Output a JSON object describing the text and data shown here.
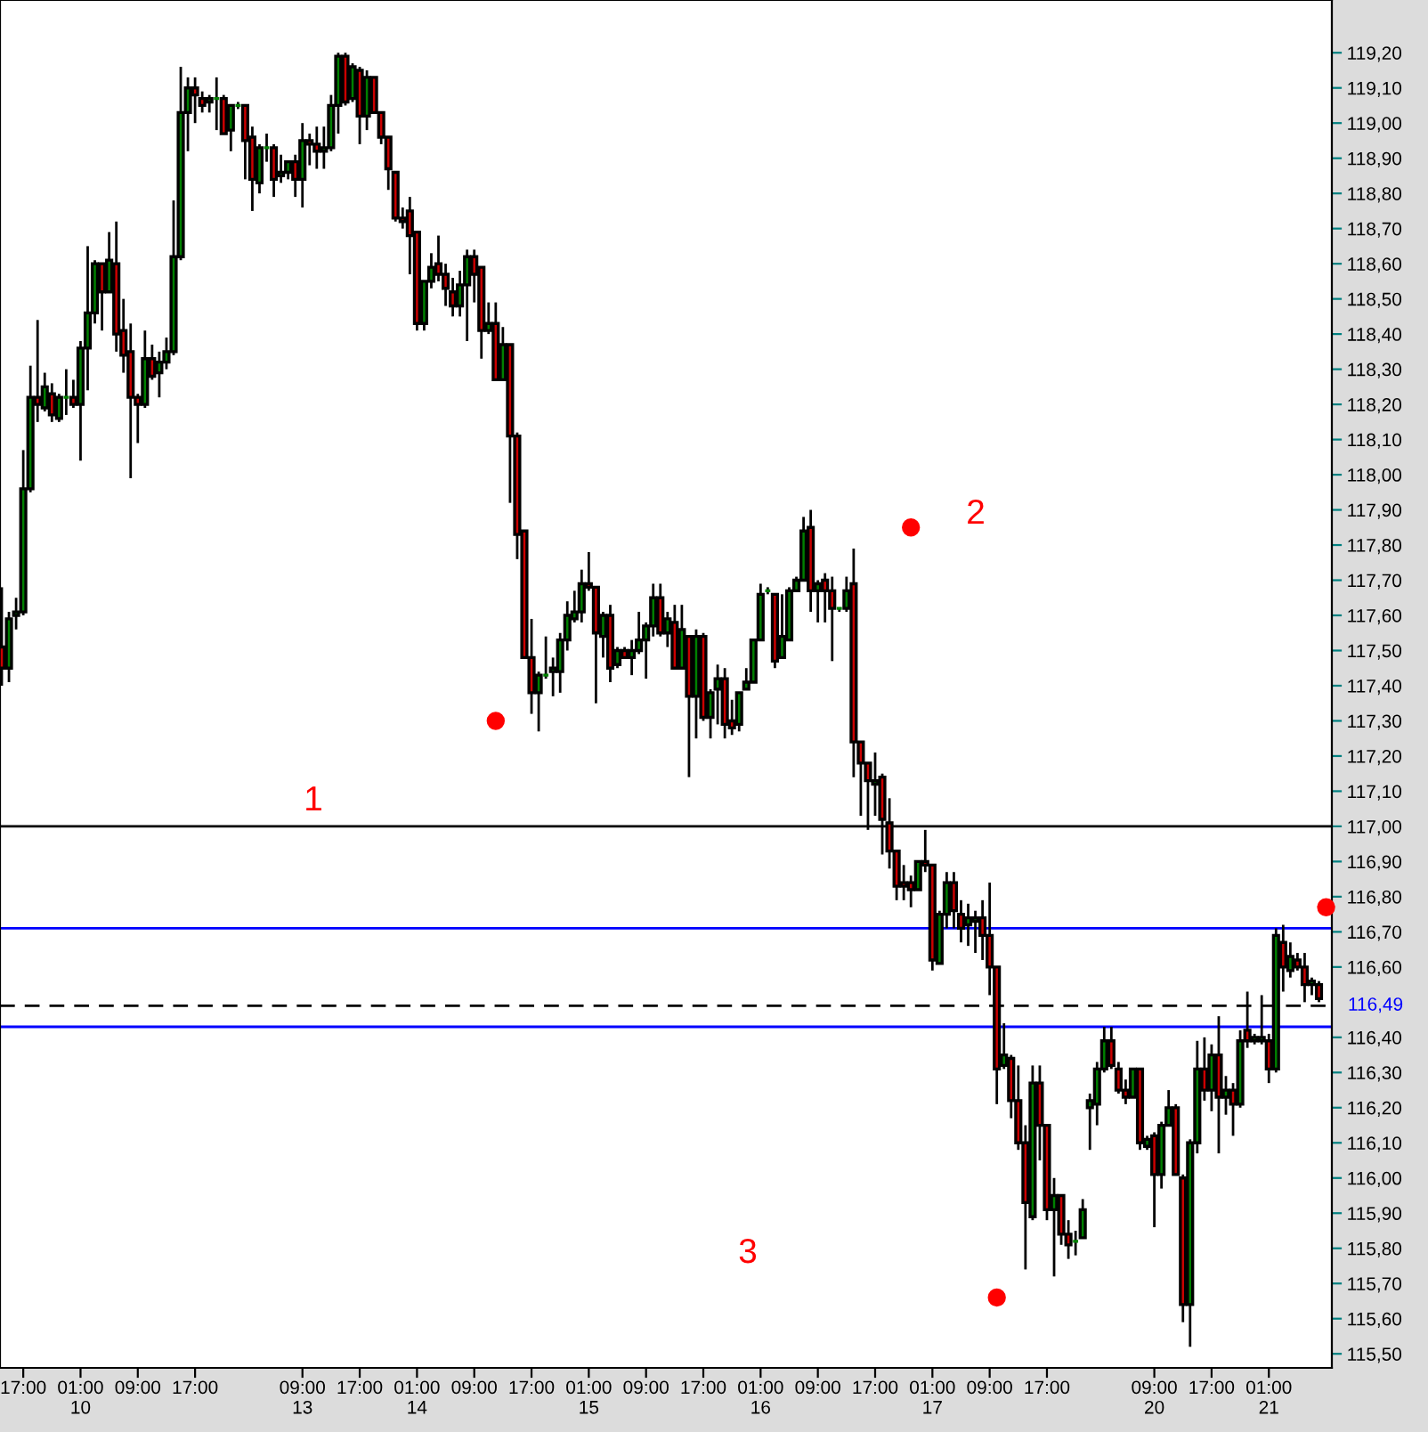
{
  "chart_data": {
    "type": "candlestick",
    "categories": [
      null,
      null,
      null,
      "17:00",
      null,
      null,
      null,
      null,
      null,
      null,
      null,
      "01:00\n10",
      null,
      null,
      null,
      null,
      null,
      null,
      null,
      "09:00",
      null,
      null,
      null,
      null,
      null,
      null,
      null,
      "17:00",
      null,
      null,
      null,
      null,
      null,
      null,
      null,
      null,
      null,
      null,
      null,
      null,
      null,
      null,
      "09:00\n13",
      null,
      null,
      null,
      null,
      null,
      null,
      null,
      "17:00",
      null,
      null,
      null,
      null,
      null,
      null,
      null,
      "01:00\n14",
      null,
      null,
      null,
      null,
      null,
      null,
      null,
      "09:00",
      null,
      null,
      null,
      null,
      null,
      null,
      null,
      "17:00",
      null,
      null,
      null,
      null,
      null,
      null,
      null,
      "01:00\n15",
      null,
      null,
      null,
      null,
      null,
      null,
      null,
      "09:00",
      null,
      null,
      null,
      null,
      null,
      null,
      null,
      "17:00",
      null,
      null,
      null,
      null,
      null,
      null,
      null,
      "01:00\n16",
      null,
      null,
      null,
      null,
      null,
      null,
      null,
      "09:00",
      null,
      null,
      null,
      null,
      null,
      null,
      null,
      "17:00",
      null,
      null,
      null,
      null,
      null,
      null,
      null,
      "01:00\n17",
      null,
      null,
      null,
      null,
      null,
      null,
      null,
      "09:00",
      null,
      null,
      null,
      null,
      null,
      null,
      null,
      "17:00",
      null,
      null,
      null,
      null,
      null,
      null,
      null,
      null,
      null,
      null,
      null,
      null,
      null,
      null,
      "09:00\n20",
      null,
      null,
      null,
      null,
      null,
      null,
      null,
      "17:00",
      null,
      null,
      null,
      null,
      null,
      null,
      null,
      "01:00\n21",
      null,
      null,
      null,
      null,
      null,
      null,
      null,
      null
    ],
    "ohlc": [
      [
        117.51,
        117.68,
        117.4,
        117.45
      ],
      [
        117.45,
        117.61,
        117.41,
        117.59
      ],
      [
        117.6,
        117.65,
        117.56,
        117.61
      ],
      [
        117.61,
        118.07,
        117.6,
        117.96
      ],
      [
        117.96,
        118.31,
        117.95,
        118.22
      ],
      [
        118.22,
        118.44,
        118.15,
        118.2
      ],
      [
        118.19,
        118.29,
        118.18,
        118.25
      ],
      [
        118.23,
        118.26,
        118.15,
        118.17
      ],
      [
        118.16,
        118.23,
        118.15,
        118.22
      ],
      [
        118.22,
        118.3,
        118.17,
        118.22
      ],
      [
        118.22,
        118.27,
        118.19,
        118.2
      ],
      [
        118.2,
        118.38,
        118.04,
        118.36
      ],
      [
        118.36,
        118.65,
        118.24,
        118.46
      ],
      [
        118.46,
        118.61,
        118.43,
        118.6
      ],
      [
        118.6,
        118.6,
        118.41,
        118.52
      ],
      [
        118.52,
        118.69,
        118.52,
        118.61
      ],
      [
        118.6,
        118.72,
        118.35,
        118.4
      ],
      [
        118.41,
        118.5,
        118.29,
        118.34
      ],
      [
        118.35,
        118.43,
        117.99,
        118.22
      ],
      [
        118.22,
        118.23,
        118.09,
        118.2
      ],
      [
        118.2,
        118.41,
        118.19,
        118.33
      ],
      [
        118.33,
        118.37,
        118.27,
        118.28
      ],
      [
        118.29,
        118.35,
        118.22,
        118.32
      ],
      [
        118.32,
        118.39,
        118.3,
        118.35
      ],
      [
        118.35,
        118.78,
        118.34,
        118.62
      ],
      [
        118.62,
        119.16,
        118.61,
        119.03
      ],
      [
        119.03,
        119.13,
        118.92,
        119.1
      ],
      [
        119.1,
        119.13,
        119.0,
        119.08
      ],
      [
        119.07,
        119.09,
        119.03,
        119.05
      ],
      [
        119.06,
        119.08,
        119.03,
        119.07
      ],
      [
        119.07,
        119.13,
        118.98,
        119.07
      ],
      [
        119.07,
        119.08,
        118.97,
        118.97
      ],
      [
        118.98,
        119.05,
        118.92,
        119.05
      ],
      [
        119.05,
        119.06,
        119.04,
        119.05
      ],
      [
        119.05,
        119.05,
        118.84,
        118.95
      ],
      [
        118.96,
        118.99,
        118.75,
        118.84
      ],
      [
        118.83,
        118.94,
        118.8,
        118.93
      ],
      [
        118.93,
        118.97,
        118.89,
        118.93
      ],
      [
        118.93,
        118.94,
        118.79,
        118.84
      ],
      [
        118.85,
        118.91,
        118.83,
        118.86
      ],
      [
        118.86,
        118.89,
        118.84,
        118.89
      ],
      [
        118.89,
        118.91,
        118.79,
        118.84
      ],
      [
        118.84,
        119.0,
        118.76,
        118.95
      ],
      [
        118.95,
        118.97,
        118.88,
        118.94
      ],
      [
        118.94,
        118.99,
        118.87,
        118.92
      ],
      [
        118.92,
        118.99,
        118.87,
        118.93
      ],
      [
        118.93,
        119.08,
        118.92,
        119.05
      ],
      [
        119.05,
        119.2,
        118.97,
        119.19
      ],
      [
        119.19,
        119.2,
        119.05,
        119.06
      ],
      [
        119.07,
        119.17,
        119.06,
        119.16
      ],
      [
        119.15,
        119.16,
        118.94,
        119.02
      ],
      [
        119.02,
        119.15,
        118.98,
        119.13
      ],
      [
        119.13,
        119.13,
        119.03,
        119.03
      ],
      [
        119.03,
        119.03,
        118.94,
        118.96
      ],
      [
        118.96,
        118.96,
        118.81,
        118.87
      ],
      [
        118.86,
        118.86,
        118.72,
        118.73
      ],
      [
        118.73,
        118.76,
        118.7,
        118.72
      ],
      [
        118.75,
        118.79,
        118.57,
        118.68
      ],
      [
        118.69,
        118.69,
        118.41,
        118.43
      ],
      [
        118.43,
        118.55,
        118.41,
        118.55
      ],
      [
        118.55,
        118.63,
        118.53,
        118.59
      ],
      [
        118.6,
        118.68,
        118.55,
        118.57
      ],
      [
        118.57,
        118.6,
        118.48,
        118.53
      ],
      [
        118.52,
        118.56,
        118.45,
        118.48
      ],
      [
        118.48,
        118.58,
        118.45,
        118.54
      ],
      [
        118.54,
        118.64,
        118.38,
        118.62
      ],
      [
        118.62,
        118.64,
        118.49,
        118.57
      ],
      [
        118.59,
        118.59,
        118.33,
        118.41
      ],
      [
        118.41,
        118.49,
        118.4,
        118.43
      ],
      [
        118.43,
        118.49,
        118.27,
        118.27
      ],
      [
        118.27,
        118.42,
        118.27,
        118.37
      ],
      [
        118.37,
        118.37,
        117.92,
        118.11
      ],
      [
        118.11,
        118.12,
        117.76,
        117.83
      ],
      [
        117.84,
        117.84,
        117.48,
        117.48
      ],
      [
        117.48,
        117.59,
        117.32,
        117.38
      ],
      [
        117.38,
        117.44,
        117.27,
        117.43
      ],
      [
        117.43,
        117.54,
        117.42,
        117.43
      ],
      [
        117.44,
        117.48,
        117.37,
        117.45
      ],
      [
        117.44,
        117.55,
        117.38,
        117.53
      ],
      [
        117.53,
        117.64,
        117.5,
        117.6
      ],
      [
        117.59,
        117.67,
        117.58,
        117.61
      ],
      [
        117.61,
        117.73,
        117.58,
        117.69
      ],
      [
        117.69,
        117.78,
        117.67,
        117.68
      ],
      [
        117.68,
        117.68,
        117.35,
        117.55
      ],
      [
        117.54,
        117.61,
        117.48,
        117.6
      ],
      [
        117.6,
        117.63,
        117.41,
        117.45
      ],
      [
        117.46,
        117.51,
        117.45,
        117.5
      ],
      [
        117.5,
        117.51,
        117.48,
        117.48
      ],
      [
        117.48,
        117.53,
        117.43,
        117.5
      ],
      [
        117.5,
        117.61,
        117.49,
        117.53
      ],
      [
        117.53,
        117.58,
        117.42,
        117.57
      ],
      [
        117.57,
        117.69,
        117.54,
        117.65
      ],
      [
        117.65,
        117.69,
        117.54,
        117.55
      ],
      [
        117.55,
        117.61,
        117.51,
        117.59
      ],
      [
        117.58,
        117.63,
        117.45,
        117.45
      ],
      [
        117.45,
        117.63,
        117.45,
        117.56
      ],
      [
        117.54,
        117.54,
        117.14,
        117.37
      ],
      [
        117.37,
        117.56,
        117.25,
        117.54
      ],
      [
        117.54,
        117.55,
        117.3,
        117.31
      ],
      [
        117.31,
        117.39,
        117.25,
        117.38
      ],
      [
        117.39,
        117.46,
        117.29,
        117.42
      ],
      [
        117.42,
        117.45,
        117.25,
        117.29
      ],
      [
        117.3,
        117.36,
        117.26,
        117.28
      ],
      [
        117.29,
        117.38,
        117.27,
        117.38
      ],
      [
        117.39,
        117.45,
        117.39,
        117.41
      ],
      [
        117.41,
        117.53,
        117.41,
        117.53
      ],
      [
        117.53,
        117.69,
        117.53,
        117.66
      ],
      [
        117.67,
        117.68,
        117.66,
        117.67
      ],
      [
        117.66,
        117.66,
        117.45,
        117.47
      ],
      [
        117.48,
        117.66,
        117.48,
        117.54
      ],
      [
        117.53,
        117.68,
        117.53,
        117.67
      ],
      [
        117.67,
        117.71,
        117.67,
        117.7
      ],
      [
        117.7,
        117.88,
        117.7,
        117.84
      ],
      [
        117.85,
        117.9,
        117.61,
        117.67
      ],
      [
        117.67,
        117.7,
        117.58,
        117.69
      ],
      [
        117.7,
        117.72,
        117.58,
        117.67
      ],
      [
        117.67,
        117.71,
        117.47,
        117.62
      ],
      [
        117.62,
        117.62,
        117.61,
        117.62
      ],
      [
        117.62,
        117.71,
        117.61,
        117.67
      ],
      [
        117.69,
        117.79,
        117.14,
        117.24
      ],
      [
        117.24,
        117.24,
        117.03,
        117.18
      ],
      [
        117.18,
        117.18,
        116.99,
        117.13
      ],
      [
        117.12,
        117.21,
        117.03,
        117.13
      ],
      [
        117.14,
        117.15,
        116.92,
        117.02
      ],
      [
        117.01,
        117.08,
        116.88,
        116.93
      ],
      [
        116.93,
        116.93,
        116.79,
        116.83
      ],
      [
        116.84,
        116.89,
        116.79,
        116.83
      ],
      [
        116.84,
        116.86,
        116.77,
        116.82
      ],
      [
        116.82,
        116.9,
        116.82,
        116.9
      ],
      [
        116.9,
        116.99,
        116.87,
        116.89
      ],
      [
        116.89,
        116.89,
        116.59,
        116.62
      ],
      [
        116.61,
        116.76,
        116.61,
        116.75
      ],
      [
        116.75,
        116.87,
        116.71,
        116.84
      ],
      [
        116.84,
        116.87,
        116.71,
        116.76
      ],
      [
        116.75,
        116.79,
        116.67,
        116.71
      ],
      [
        116.72,
        116.78,
        116.66,
        116.74
      ],
      [
        116.73,
        116.76,
        116.64,
        116.74
      ],
      [
        116.74,
        116.79,
        116.62,
        116.69
      ],
      [
        116.69,
        116.84,
        116.52,
        116.6
      ],
      [
        116.6,
        116.6,
        116.21,
        116.31
      ],
      [
        116.32,
        116.44,
        116.31,
        116.35
      ],
      [
        116.34,
        116.35,
        116.17,
        116.22
      ],
      [
        116.22,
        116.32,
        116.08,
        116.1
      ],
      [
        116.1,
        116.15,
        115.74,
        115.93
      ],
      [
        115.89,
        116.32,
        115.88,
        116.27
      ],
      [
        116.27,
        116.32,
        116.05,
        116.15
      ],
      [
        116.15,
        116.15,
        115.88,
        115.91
      ],
      [
        115.91,
        116.0,
        115.72,
        115.95
      ],
      [
        115.95,
        115.95,
        115.81,
        115.84
      ],
      [
        115.84,
        115.88,
        115.77,
        115.81
      ],
      [
        115.82,
        115.85,
        115.78,
        115.82
      ],
      [
        115.83,
        115.94,
        115.83,
        115.91
      ],
      [
        116.2,
        116.24,
        116.08,
        116.22
      ],
      [
        116.21,
        116.33,
        116.15,
        116.31
      ],
      [
        116.31,
        116.43,
        116.3,
        116.39
      ],
      [
        116.39,
        116.43,
        116.31,
        116.32
      ],
      [
        116.31,
        116.33,
        116.24,
        116.25
      ],
      [
        116.25,
        116.28,
        116.21,
        116.23
      ],
      [
        116.23,
        116.31,
        116.23,
        116.31
      ],
      [
        116.31,
        116.31,
        116.08,
        116.1
      ],
      [
        116.09,
        116.12,
        116.08,
        116.11
      ],
      [
        116.12,
        116.13,
        115.86,
        116.01
      ],
      [
        116.01,
        116.16,
        115.97,
        116.15
      ],
      [
        116.15,
        116.25,
        116.15,
        116.2
      ],
      [
        116.2,
        116.21,
        116.01,
        116.01
      ],
      [
        116.0,
        116.01,
        115.59,
        115.64
      ],
      [
        115.64,
        116.11,
        115.52,
        116.1
      ],
      [
        116.1,
        116.39,
        116.07,
        116.31
      ],
      [
        116.31,
        116.4,
        116.22,
        116.25
      ],
      [
        116.25,
        116.38,
        116.19,
        116.35
      ],
      [
        116.35,
        116.46,
        116.07,
        116.23
      ],
      [
        116.23,
        116.29,
        116.18,
        116.25
      ],
      [
        116.25,
        116.27,
        116.12,
        116.21
      ],
      [
        116.21,
        116.42,
        116.2,
        116.39
      ],
      [
        116.42,
        116.53,
        116.37,
        116.39
      ],
      [
        116.39,
        116.41,
        116.38,
        116.4
      ],
      [
        116.39,
        116.52,
        116.38,
        116.4
      ],
      [
        116.39,
        116.41,
        116.27,
        116.31
      ],
      [
        116.31,
        116.71,
        116.3,
        116.69
      ],
      [
        116.67,
        116.72,
        116.53,
        116.6
      ],
      [
        116.59,
        116.67,
        116.57,
        116.63
      ],
      [
        116.62,
        116.64,
        116.59,
        116.6
      ],
      [
        116.6,
        116.64,
        116.5,
        116.55
      ],
      [
        116.55,
        116.57,
        116.52,
        116.56
      ],
      [
        116.55,
        116.56,
        116.5,
        116.51
      ],
      null
    ],
    "colors": [
      "#cc0000",
      "#008000",
      "#008000",
      "#008000",
      "#008000",
      "#cc0000",
      "#008000",
      "#cc0000",
      "#008000",
      "#008000",
      "#cc0000",
      "#008000",
      "#008000",
      "#008000",
      "#cc0000",
      "#008000",
      "#cc0000",
      "#cc0000",
      "#cc0000",
      "#cc0000",
      "#008000",
      "#cc0000",
      "#008000",
      "#008000",
      "#008000",
      "#008000",
      "#008000",
      "#cc0000",
      "#cc0000",
      "#008000",
      "#008000",
      "#cc0000",
      "#008000",
      "#008000",
      "#cc0000",
      "#cc0000",
      "#008000",
      "#008000",
      "#cc0000",
      "#008000",
      "#008000",
      "#cc0000",
      "#008000",
      "#cc0000",
      "#cc0000",
      "#008000",
      "#008000",
      "#008000",
      "#cc0000",
      "#008000",
      "#cc0000",
      "#008000",
      "#cc0000",
      "#cc0000",
      "#cc0000",
      "#cc0000",
      "#cc0000",
      "#cc0000",
      "#cc0000",
      "#008000",
      "#008000",
      "#cc0000",
      "#cc0000",
      "#cc0000",
      "#008000",
      "#008000",
      "#cc0000",
      "#cc0000",
      "#008000",
      "#cc0000",
      "#008000",
      "#cc0000",
      "#cc0000",
      "#cc0000",
      "#cc0000",
      "#008000",
      "#008000",
      "#008000",
      "#008000",
      "#008000",
      "#008000",
      "#008000",
      "#cc0000",
      "#cc0000",
      "#008000",
      "#cc0000",
      "#008000",
      "#cc0000",
      "#008000",
      "#008000",
      "#008000",
      "#008000",
      "#cc0000",
      "#008000",
      "#cc0000",
      "#008000",
      "#cc0000",
      "#008000",
      "#cc0000",
      "#008000",
      "#008000",
      "#cc0000",
      "#cc0000",
      "#008000",
      "#008000",
      "#008000",
      "#008000",
      "#008000",
      "#cc0000",
      "#008000",
      "#008000",
      "#008000",
      "#008000",
      "#cc0000",
      "#008000",
      "#cc0000",
      "#cc0000",
      "#008000",
      "#008000",
      "#cc0000",
      "#cc0000",
      "#cc0000",
      "#008000",
      "#cc0000",
      "#cc0000",
      "#cc0000",
      "#cc0000",
      "#cc0000",
      "#008000",
      "#cc0000",
      "#cc0000",
      "#008000",
      "#008000",
      "#cc0000",
      "#cc0000",
      "#008000",
      "#008000",
      "#cc0000",
      "#cc0000",
      "#cc0000",
      "#008000",
      "#cc0000",
      "#cc0000",
      "#cc0000",
      "#008000",
      "#cc0000",
      "#cc0000",
      "#008000",
      "#cc0000",
      "#cc0000",
      "#008000",
      "#008000",
      "#008000",
      "#008000",
      "#008000",
      "#cc0000",
      "#cc0000",
      "#cc0000",
      "#008000",
      "#cc0000",
      "#008000",
      "#cc0000",
      "#008000",
      "#008000",
      "#cc0000",
      "#cc0000",
      "#008000",
      "#008000",
      "#cc0000",
      "#008000",
      "#cc0000",
      "#008000",
      "#cc0000",
      "#008000",
      "#cc0000",
      "#008000",
      "#008000",
      "#cc0000",
      "#008000",
      "#cc0000",
      "#008000",
      "#cc0000",
      "#cc0000",
      "#008000",
      "#cc0000",
      null
    ],
    "series": [
      {
        "type": "scatter",
        "color": "#ff0000",
        "marker": "circle",
        "values": [
          null,
          null,
          null,
          null,
          null,
          null,
          null,
          null,
          null,
          null,
          null,
          null,
          null,
          null,
          null,
          null,
          null,
          null,
          null,
          null,
          null,
          null,
          null,
          null,
          null,
          null,
          null,
          null,
          null,
          null,
          null,
          null,
          null,
          null,
          null,
          null,
          null,
          null,
          null,
          null,
          null,
          null,
          null,
          null,
          null,
          null,
          null,
          null,
          null,
          null,
          null,
          null,
          null,
          null,
          null,
          null,
          null,
          null,
          null,
          null,
          null,
          null,
          null,
          null,
          null,
          null,
          null,
          null,
          null,
          117.3,
          null,
          null,
          null,
          null,
          null,
          null,
          null,
          null,
          null,
          null,
          null,
          null,
          null,
          null,
          null,
          null,
          null,
          null,
          null,
          null,
          null,
          null,
          null,
          null,
          null,
          null,
          null,
          null,
          null,
          null,
          null,
          null,
          null,
          null,
          null,
          null,
          null,
          null,
          null,
          null,
          null,
          null,
          null,
          null,
          null,
          null,
          null,
          null,
          null,
          null,
          null,
          null,
          null,
          null,
          null,
          null,
          null,
          117.85,
          null,
          null,
          null,
          null,
          null,
          null,
          null,
          null,
          null,
          null,
          null,
          115.66,
          null,
          null,
          null,
          null,
          null,
          null,
          null,
          null,
          null,
          null,
          null,
          null,
          null,
          null,
          null,
          null,
          null,
          null,
          null,
          null,
          null,
          null,
          null,
          null,
          null,
          null,
          null,
          null,
          null,
          null,
          null,
          null,
          null,
          null,
          null,
          null,
          null,
          null,
          null,
          null,
          null,
          null,
          null,
          null,
          null,
          116.77
        ]
      }
    ],
    "annotations": [
      "1",
      "2",
      "3"
    ],
    "ref_lines": [
      {
        "axis": "y",
        "value": 117.0,
        "color": "#000000"
      },
      {
        "axis": "y",
        "value": 116.71,
        "color": "#0000ff"
      },
      {
        "axis": "y",
        "value": 116.43,
        "color": "#0000ff"
      },
      {
        "axis": "y",
        "value": 116.49,
        "label": "116,49",
        "color": "#000000",
        "line_style": "dashed"
      }
    ],
    "ylim": [
      115.46,
      119.35
    ],
    "yticks": [
      {
        "value": 115.5,
        "label": "115,50"
      },
      {
        "value": 115.6,
        "label": "115,60"
      },
      {
        "value": 115.7,
        "label": "115,70"
      },
      {
        "value": 115.8,
        "label": "115,80"
      },
      {
        "value": 115.9,
        "label": "115,90"
      },
      {
        "value": 116.0,
        "label": "116,00"
      },
      {
        "value": 116.1,
        "label": "116,10"
      },
      {
        "value": 116.2,
        "label": "116,20"
      },
      {
        "value": 116.3,
        "label": "116,30"
      },
      {
        "value": 116.4,
        "label": "116,40"
      },
      {
        "value": 116.6,
        "label": "116,60"
      },
      {
        "value": 116.7,
        "label": "116,70"
      },
      {
        "value": 116.8,
        "label": "116,80"
      },
      {
        "value": 116.9,
        "label": "116,90"
      },
      {
        "value": 117.0,
        "label": "117,00"
      },
      {
        "value": 117.1,
        "label": "117,10"
      },
      {
        "value": 117.2,
        "label": "117,20"
      },
      {
        "value": 117.3,
        "label": "117,30"
      },
      {
        "value": 117.4,
        "label": "117,40"
      },
      {
        "value": 117.5,
        "label": "117,50"
      },
      {
        "value": 117.6,
        "label": "117,60"
      },
      {
        "value": 117.7,
        "label": "117,70"
      },
      {
        "value": 117.8,
        "label": "117,80"
      },
      {
        "value": 117.9,
        "label": "117,90"
      },
      {
        "value": 118.0,
        "label": "118,00"
      },
      {
        "value": 118.1,
        "label": "118,10"
      },
      {
        "value": 118.2,
        "label": "118,20"
      },
      {
        "value": 118.3,
        "label": "118,30"
      },
      {
        "value": 118.4,
        "label": "118,40"
      },
      {
        "value": 118.5,
        "label": "118,50"
      },
      {
        "value": 118.6,
        "label": "118,60"
      },
      {
        "value": 118.7,
        "label": "118,70"
      },
      {
        "value": 118.8,
        "label": "118,80"
      },
      {
        "value": 118.9,
        "label": "118,90"
      },
      {
        "value": 119.0,
        "label": "119,00"
      },
      {
        "value": 119.1,
        "label": "119,10"
      },
      {
        "value": 119.2,
        "label": "119,20"
      }
    ]
  }
}
